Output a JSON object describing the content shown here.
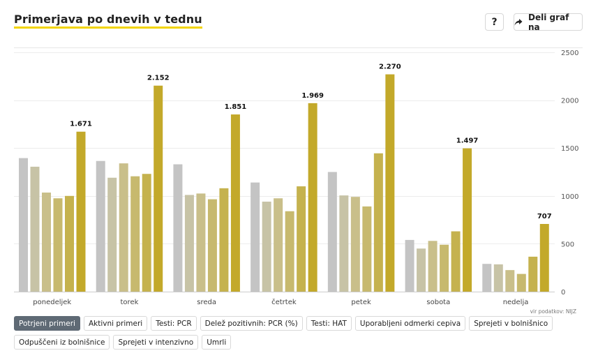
{
  "header": {
    "title": "Primerjava po dnevih v tednu",
    "help_label": "?",
    "share_label": "Deli graf na"
  },
  "chart_data": {
    "type": "bar",
    "title": "Primerjava po dnevih v tednu",
    "categories": [
      "ponedeljek",
      "torek",
      "sreda",
      "četrtek",
      "petek",
      "sobota",
      "nedelja"
    ],
    "series": [
      {
        "values": [
          1395,
          1365,
          1330,
          1140,
          1250,
          540,
          290
        ],
        "color": "#c4c4c4"
      },
      {
        "values": [
          1305,
          1190,
          1010,
          940,
          1005,
          450,
          285
        ],
        "color": "#c7c3a6"
      },
      {
        "values": [
          1035,
          1340,
          1025,
          975,
          990,
          530,
          225
        ],
        "color": "#c9bf8a"
      },
      {
        "values": [
          975,
          1205,
          965,
          840,
          890,
          490,
          185
        ],
        "color": "#c7b96e"
      },
      {
        "values": [
          1000,
          1230,
          1080,
          1100,
          1445,
          630,
          365
        ],
        "color": "#c5b24e"
      },
      {
        "values": [
          1671,
          2152,
          1851,
          1969,
          2270,
          1497,
          707
        ],
        "color": "#c3a92a"
      }
    ],
    "value_labels": [
      "1.671",
      "2.152",
      "1.851",
      "1.969",
      "2.270",
      "1.497",
      "707"
    ],
    "y_ticks": [
      0,
      500,
      1000,
      1500,
      2000,
      2500
    ],
    "y_tick_labels": [
      "0",
      "500",
      "1000",
      "1500",
      "2000",
      "2500"
    ],
    "ylim": [
      0,
      2500
    ],
    "xlabel": "",
    "ylabel": "",
    "grid": true,
    "y_axis_side": "right",
    "source": "vir podatkov: NIJZ"
  },
  "tabs": [
    {
      "label": "Potrjeni primeri",
      "active": true
    },
    {
      "label": "Aktivni primeri",
      "active": false
    },
    {
      "label": "Testi: PCR",
      "active": false
    },
    {
      "label": "Delež pozitivnih: PCR (%)",
      "active": false
    },
    {
      "label": "Testi: HAT",
      "active": false
    },
    {
      "label": "Uporabljeni odmerki cepiva",
      "active": false
    },
    {
      "label": "Sprejeti v bolnišnico",
      "active": false
    },
    {
      "label": "Odpuščeni iz bolnišnice",
      "active": false
    },
    {
      "label": "Sprejeti v intenzivno",
      "active": false
    },
    {
      "label": "Umrli",
      "active": false
    }
  ]
}
